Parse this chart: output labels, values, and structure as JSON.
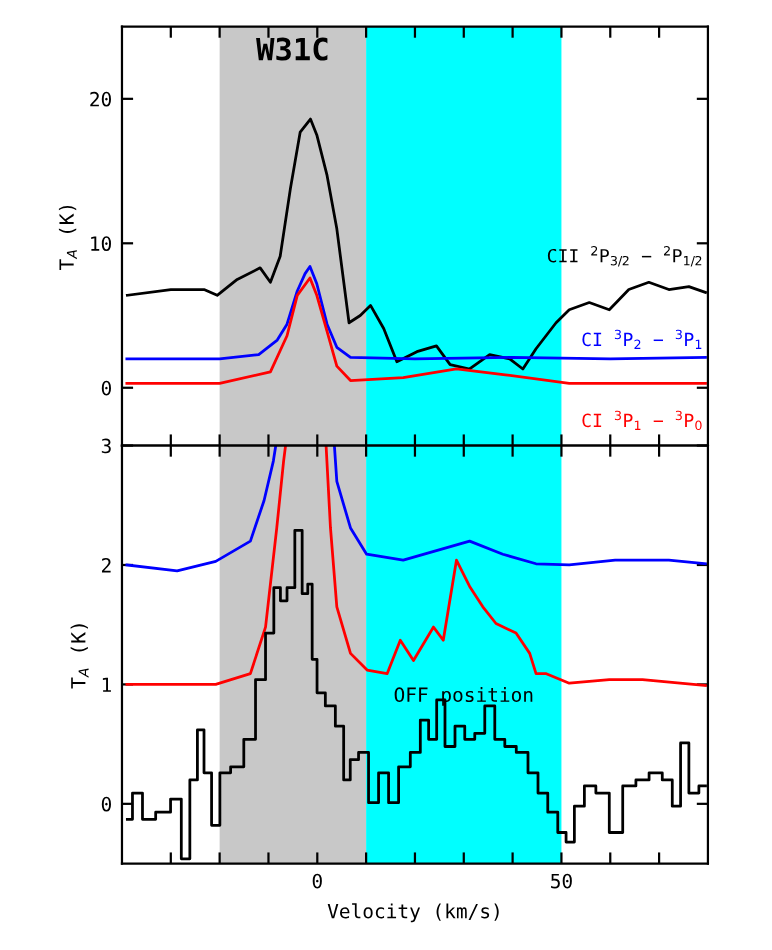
{
  "chart_data": [
    {
      "type": "line",
      "ylabel": "T$_{A}$ (K)",
      "xlim": [
        -40,
        80
      ],
      "ylim": [
        -4,
        25
      ],
      "xticks": [
        {
          "value": -30,
          "label": null
        },
        {
          "value": -20,
          "label": null
        },
        {
          "value": -10,
          "label": null
        },
        {
          "value": 0,
          "label": null
        },
        {
          "value": 10,
          "label": null
        },
        {
          "value": 20,
          "label": null
        },
        {
          "value": 30,
          "label": null
        },
        {
          "value": 40,
          "label": null
        },
        {
          "value": 50,
          "label": null
        },
        {
          "value": 60,
          "label": null
        },
        {
          "value": 70,
          "label": null
        }
      ],
      "yticks": [
        0,
        10,
        20
      ],
      "tick_labels": "y",
      "bands": [
        {
          "axis": "x",
          "from": -20,
          "to": 10,
          "label": "W31C",
          "color": "#c8c8c8"
        },
        {
          "axis": "x",
          "from": 10,
          "to": 50,
          "color": "#00ffff"
        }
      ],
      "series": [
        {
          "name": "CII $^{2}$P$_{3/2}$ − $^{2}$P$_{1/2}$",
          "color": "#000000",
          "x": [
            -38.9,
            -30.0,
            -23.2,
            -20.5,
            -16.4,
            -11.7,
            -9.6,
            -7.6,
            -5.5,
            -3.5,
            -1.4,
            -0.1,
            2.0,
            4.0,
            6.5,
            8.8,
            10.9,
            13.6,
            16.3,
            20.4,
            24.4,
            27.2,
            31.2,
            35.3,
            39.4,
            42.1,
            44.8,
            48.9,
            51.6,
            55.7,
            59.8,
            63.8,
            67.9,
            72.0,
            76.1,
            79.5
          ],
          "values": [
            6.4,
            6.8,
            6.8,
            6.4,
            7.5,
            8.3,
            7.3,
            9.1,
            13.8,
            17.7,
            18.6,
            17.5,
            14.7,
            11.0,
            4.5,
            5.0,
            5.7,
            4.1,
            1.8,
            2.5,
            2.9,
            1.6,
            1.3,
            2.3,
            2.0,
            1.3,
            2.7,
            4.5,
            5.4,
            5.9,
            5.4,
            6.8,
            7.3,
            6.8,
            7.0,
            6.6
          ]
        },
        {
          "name": "CI $^{3}$P$_{2}$ − $^{3}$P$_{1}$",
          "color": "#0000ff",
          "x": [
            -39,
            -20,
            -12,
            -8.2,
            -6.2,
            -4.1,
            -2.5,
            -1.5,
            -0.1,
            2.0,
            4.0,
            6.8,
            20,
            40,
            60,
            79.5
          ],
          "values": [
            2.0,
            2.0,
            2.3,
            3.3,
            4.4,
            6.7,
            7.9,
            8.4,
            7.2,
            4.4,
            2.8,
            2.1,
            2.0,
            2.1,
            2.0,
            2.1
          ]
        },
        {
          "name": "CI $^{3}$P$_{1}$ − $^{3}$P$_{0}$",
          "color": "#ff0000",
          "x": [
            -39,
            -20,
            -9.6,
            -6.2,
            -4.1,
            -1.5,
            -0.1,
            2.0,
            4.0,
            6.8,
            17.6,
            28.5,
            38.5,
            51.6,
            79.5
          ],
          "values": [
            0.3,
            0.3,
            1.1,
            3.6,
            6.4,
            7.6,
            6.4,
            3.9,
            1.5,
            0.5,
            0.7,
            1.3,
            0.9,
            0.3,
            0.3
          ]
        }
      ]
    },
    {
      "type": "line",
      "xlabel": "Velocity (km/s)",
      "ylabel": "T$_{A}$ (K)",
      "xlim": [
        -40,
        80
      ],
      "ylim": [
        -0.5,
        3
      ],
      "xticks": [
        {
          "value": -30,
          "label": null
        },
        {
          "value": -20,
          "label": null
        },
        {
          "value": -10,
          "label": null
        },
        0,
        {
          "value": 10,
          "label": null
        },
        {
          "value": 20,
          "label": null
        },
        {
          "value": 30,
          "label": null
        },
        {
          "value": 40,
          "label": null
        },
        50,
        {
          "value": 60,
          "label": null
        },
        {
          "value": 70,
          "label": null
        }
      ],
      "yticks": [
        0,
        1,
        2,
        3
      ],
      "bands": [
        {
          "axis": "x",
          "from": -20,
          "to": 10,
          "color": "#c8c8c8"
        },
        {
          "axis": "x",
          "from": 10,
          "to": 50,
          "label": "OFF position",
          "color": "#00ffff"
        }
      ],
      "series": [
        {
          "color": "#0000ff",
          "x": [
            -39,
            -28.7,
            -20.8,
            -13.7,
            -10.9,
            -9.0,
            -8.5,
            -2,
            3.5,
            4.0,
            6.8,
            10.1,
            17.6,
            24.4,
            31.2,
            38.0,
            44.8,
            51.6,
            61.0,
            72.0,
            79.5
          ],
          "values": [
            2.0,
            1.95,
            2.03,
            2.2,
            2.54,
            2.87,
            3.0,
            null,
            3.0,
            2.7,
            2.31,
            2.09,
            2.04,
            2.12,
            2.2,
            2.09,
            2.01,
            2.0,
            2.04,
            2.04,
            2.01
          ]
        },
        {
          "color": "#ff0000",
          "x": [
            -39,
            -20.8,
            -13.7,
            -10.6,
            -8.3,
            -6.9,
            -6.5,
            -2,
            1.8,
            2.7,
            4.0,
            6.8,
            10.2,
            14.3,
            17.0,
            19.7,
            23.8,
            25.8,
            28.5,
            31.2,
            33.9,
            36.6,
            40.7,
            43.5,
            44.8,
            46.9,
            51.6,
            59.8,
            66.6,
            79.5
          ],
          "values": [
            1.0,
            1.0,
            1.09,
            1.48,
            2.31,
            2.87,
            3.0,
            null,
            3.0,
            2.31,
            1.65,
            1.26,
            1.12,
            1.09,
            1.37,
            1.2,
            1.48,
            1.37,
            2.04,
            1.82,
            1.65,
            1.51,
            1.43,
            1.26,
            1.09,
            1.09,
            1.01,
            1.04,
            1.04,
            0.99
          ]
        },
        {
          "type": "step",
          "color": "#000000",
          "x": [
            -38.9,
            -36.8,
            -34.8,
            -31.4,
            -28.7,
            -27.0,
            -25.2,
            -23.9,
            -22.5,
            -20.8,
            -19.1,
            -16.4,
            -13.7,
            -11.6,
            -9.6,
            -8.2,
            -6.9,
            -5.5,
            -3.7,
            -2.5,
            -1.4,
            -0.7,
            0.6,
            2.7,
            4.7,
            6.1,
            7.4,
            9.5,
            11.5,
            13.6,
            15.6,
            17.7,
            20.4,
            21.8,
            23.8,
            25.1,
            27.2,
            29.2,
            31.2,
            33.3,
            35.3,
            37.4,
            39.4,
            42.1,
            44.2,
            46.2,
            48.2,
            50.3,
            51.6,
            53.7,
            55.7,
            58.4,
            61.2,
            63.9,
            66.6,
            69.3,
            72.0,
            73.4,
            75.4,
            76.8,
            79.5
          ],
          "values": [
            -0.13,
            0.09,
            -0.13,
            -0.07,
            0.04,
            -0.46,
            0.2,
            0.62,
            0.26,
            -0.18,
            0.26,
            0.31,
            0.54,
            1.04,
            1.43,
            1.81,
            1.7,
            1.81,
            2.29,
            1.76,
            1.84,
            1.21,
            0.93,
            0.82,
            0.65,
            0.2,
            0.37,
            0.43,
            0.01,
            0.26,
            0.01,
            0.31,
            0.43,
            0.7,
            0.54,
            0.87,
            0.48,
            0.65,
            0.54,
            0.59,
            0.82,
            0.54,
            0.48,
            0.43,
            0.26,
            0.09,
            -0.07,
            -0.24,
            -0.32,
            -0.02,
            0.15,
            0.09,
            -0.24,
            0.15,
            0.2,
            0.26,
            0.2,
            -0.02,
            0.51,
            0.09,
            0.15
          ]
        }
      ]
    }
  ]
}
